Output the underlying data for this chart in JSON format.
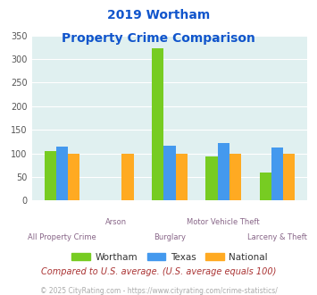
{
  "title_line1": "2019 Wortham",
  "title_line2": "Property Crime Comparison",
  "categories": [
    "All Property Crime",
    "Arson",
    "Burglary",
    "Motor Vehicle Theft",
    "Larceny & Theft"
  ],
  "wortham": [
    105,
    0,
    323,
    93,
    60
  ],
  "texas": [
    115,
    0,
    116,
    122,
    112
  ],
  "national": [
    100,
    100,
    100,
    100,
    100
  ],
  "wortham_color": "#77cc22",
  "texas_color": "#4499ee",
  "national_color": "#ffaa22",
  "bg_color": "#e0f0f0",
  "title_color": "#1155cc",
  "xlabel_color": "#886688",
  "footer_text": "Compared to U.S. average. (U.S. average equals 100)",
  "footer_color": "#aa3333",
  "credit_text": "© 2025 CityRating.com - https://www.cityrating.com/crime-statistics/",
  "credit_color": "#aaaaaa",
  "ylim": [
    0,
    350
  ],
  "yticks": [
    0,
    50,
    100,
    150,
    200,
    250,
    300,
    350
  ],
  "bar_width": 0.22,
  "legend_labels": [
    "Wortham",
    "Texas",
    "National"
  ],
  "row_assignment": [
    0,
    1,
    0,
    1,
    0
  ]
}
